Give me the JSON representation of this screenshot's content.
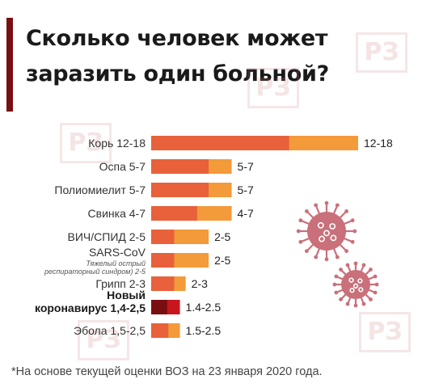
{
  "title_lines": [
    "Сколько человек может",
    "заразить один больной?"
  ],
  "watermark_text": "РЗ",
  "footnote": "*На основе текущей оценки ВОЗ на 23 января 2020 года.",
  "colors": {
    "accent": "#7a0f12",
    "bar_low": "#e8613a",
    "bar_high": "#f39a3a",
    "bar_low_new": "#7a0f12",
    "bar_high_new": "#c8161d",
    "virus": "#c9707a"
  },
  "chart_data": {
    "type": "bar",
    "orientation": "horizontal",
    "title": "Сколько человек может заразить один больной?",
    "categories": [
      {
        "label": "Корь 12-18",
        "sub": "",
        "low": 12,
        "high": 18,
        "value_label": "12-18",
        "bold": false
      },
      {
        "label": "Оспа 5-7",
        "sub": "",
        "low": 5,
        "high": 7,
        "value_label": "5-7",
        "bold": false
      },
      {
        "label": "Полиомиелит 5-7",
        "sub": "",
        "low": 5,
        "high": 7,
        "value_label": "5-7",
        "bold": false
      },
      {
        "label": "Свинка 4-7",
        "sub": "",
        "low": 4,
        "high": 7,
        "value_label": "4-7",
        "bold": false
      },
      {
        "label": "ВИЧ/СПИД 2-5",
        "sub": "",
        "low": 2,
        "high": 5,
        "value_label": "2-5",
        "bold": false
      },
      {
        "label": "SARS-CoV",
        "sub": "Тяжелый острый респираторный синдром) 2-5",
        "low": 2,
        "high": 5,
        "value_label": "2-5",
        "bold": false
      },
      {
        "label": "Грипп 2-3",
        "sub": "",
        "low": 2,
        "high": 3,
        "value_label": "2-3",
        "bold": false
      },
      {
        "label": "Новый коронавирус 1,4-2,5",
        "sub": "",
        "low": 1.4,
        "high": 2.5,
        "value_label": "1.4-2.5",
        "bold": true
      },
      {
        "label": "Эбола 1,5-2,5",
        "sub": "",
        "low": 1.5,
        "high": 2.5,
        "value_label": "1.5-2.5",
        "bold": false
      }
    ],
    "xlim": [
      0,
      18
    ],
    "grid": false,
    "legend": "none"
  }
}
